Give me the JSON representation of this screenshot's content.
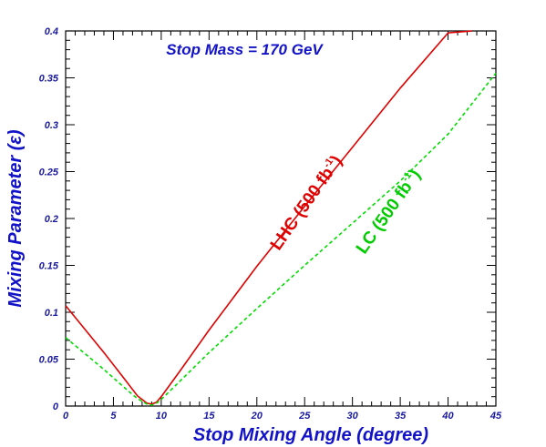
{
  "chart_data": {
    "type": "line",
    "title": "Stop Mass = 170 GeV",
    "xlabel": "Stop Mixing Angle (degree)",
    "ylabel": "Mixing Parameter (ε)",
    "xlim": [
      0,
      45
    ],
    "ylim": [
      0,
      0.4
    ],
    "x_ticks": [
      "0",
      "5",
      "10",
      "15",
      "20",
      "25",
      "30",
      "35",
      "40",
      "45"
    ],
    "y_ticks": [
      "0",
      "0.05",
      "0.1",
      "0.15",
      "0.2",
      "0.25",
      "0.3",
      "0.35",
      "0.4"
    ],
    "grid": false,
    "series": [
      {
        "name": "LHC (500 fb-1)",
        "color": "#e00000",
        "style": "solid",
        "x": [
          0,
          2,
          4,
          6,
          7.5,
          8.5,
          9.0,
          9.5,
          10,
          12,
          15,
          20,
          25,
          30,
          35,
          40,
          42.5
        ],
        "y": [
          0.107,
          0.082,
          0.057,
          0.031,
          0.011,
          0.003,
          0.002,
          0.004,
          0.01,
          0.038,
          0.081,
          0.149,
          0.213,
          0.276,
          0.339,
          0.398,
          0.4
        ]
      },
      {
        "name": "LC (500 fb-1)",
        "color": "#00dd00",
        "style": "dashed",
        "x": [
          0,
          2,
          4,
          6,
          7.5,
          8.5,
          9.0,
          9.5,
          10,
          12,
          15,
          20,
          25,
          30,
          35,
          40,
          45
        ],
        "y": [
          0.073,
          0.056,
          0.039,
          0.021,
          0.008,
          0.002,
          0.001,
          0.003,
          0.007,
          0.027,
          0.057,
          0.104,
          0.15,
          0.195,
          0.24,
          0.29,
          0.355
        ]
      }
    ],
    "annotations": [
      {
        "series": 0,
        "main": "LHC (500 fb",
        "sup": "-1",
        "close": ")"
      },
      {
        "series": 1,
        "main": "LC (500 fb",
        "sup": "-1",
        "close": ")"
      }
    ]
  }
}
